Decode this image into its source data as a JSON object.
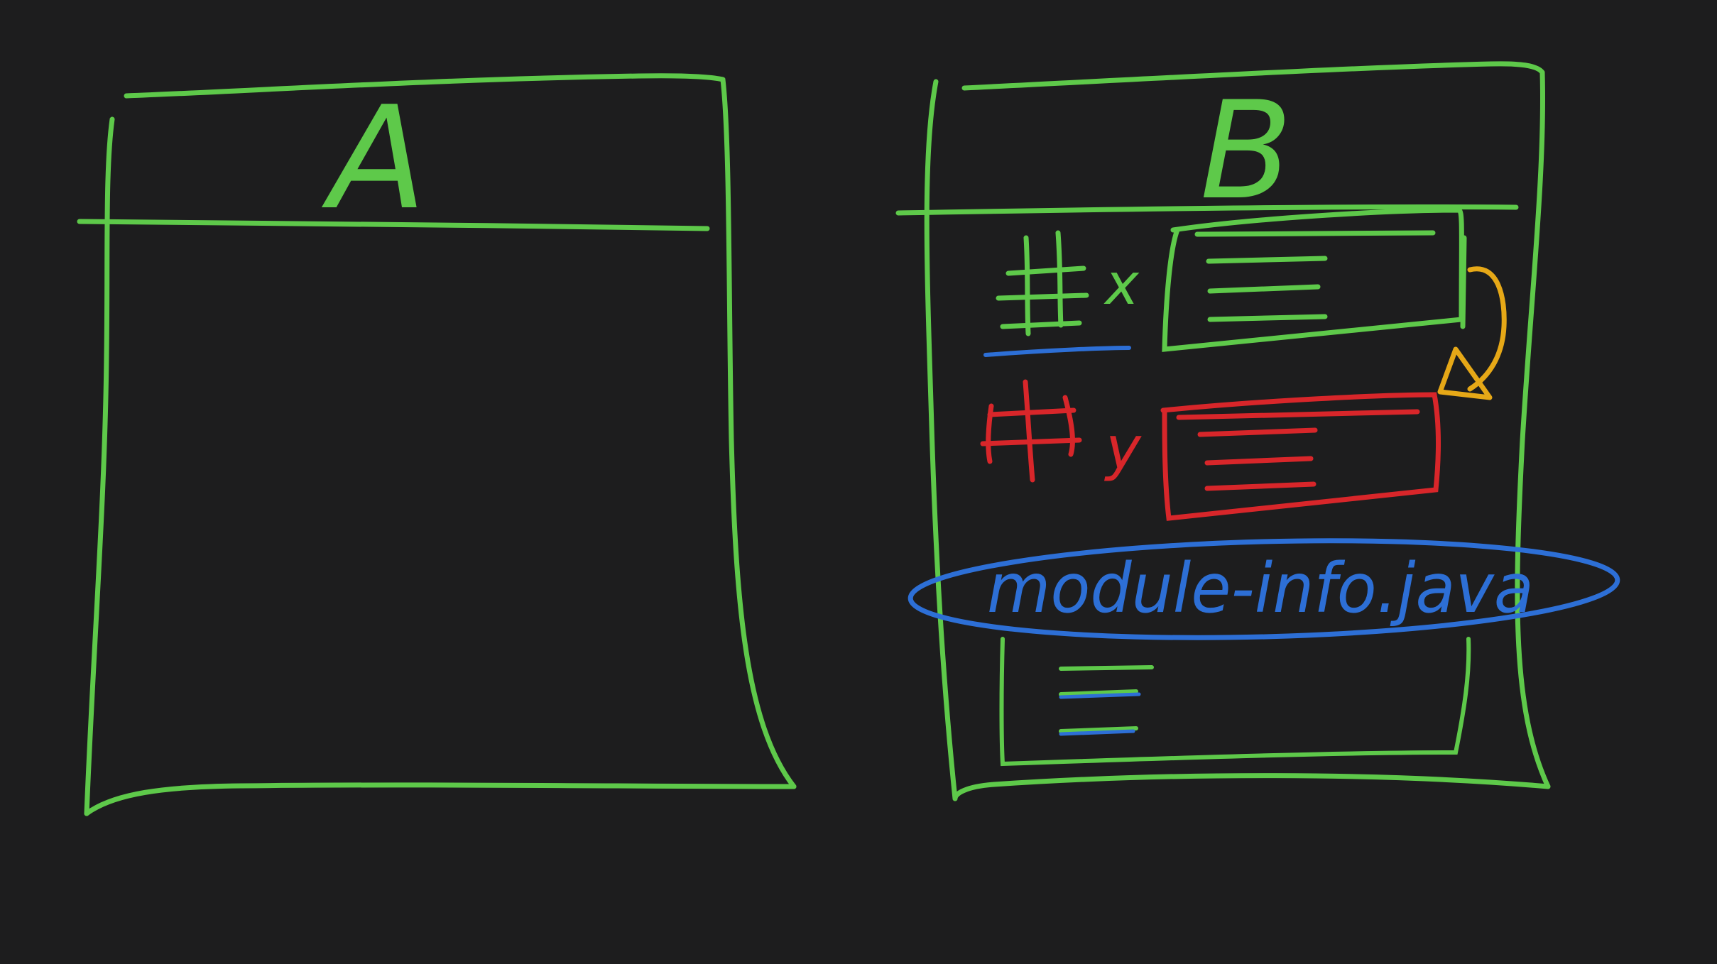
{
  "colors": {
    "background": "#1d1d1e",
    "green": "#5ec94a",
    "blue": "#2d6fd6",
    "red": "#d8262a",
    "orange": "#e6a817"
  },
  "module_a": {
    "label": "A"
  },
  "module_b": {
    "label": "B",
    "packages": [
      {
        "hash": "#",
        "name": "x",
        "color": "green",
        "class_lines": 3
      },
      {
        "hash": "#",
        "name": "y",
        "color": "red",
        "class_lines": 3
      }
    ],
    "descriptor": {
      "label": "module-info.java",
      "color": "blue"
    },
    "dependency_arrow": {
      "color": "orange",
      "from": "x",
      "to": "y"
    },
    "resources_box": {
      "lines": 3
    }
  }
}
